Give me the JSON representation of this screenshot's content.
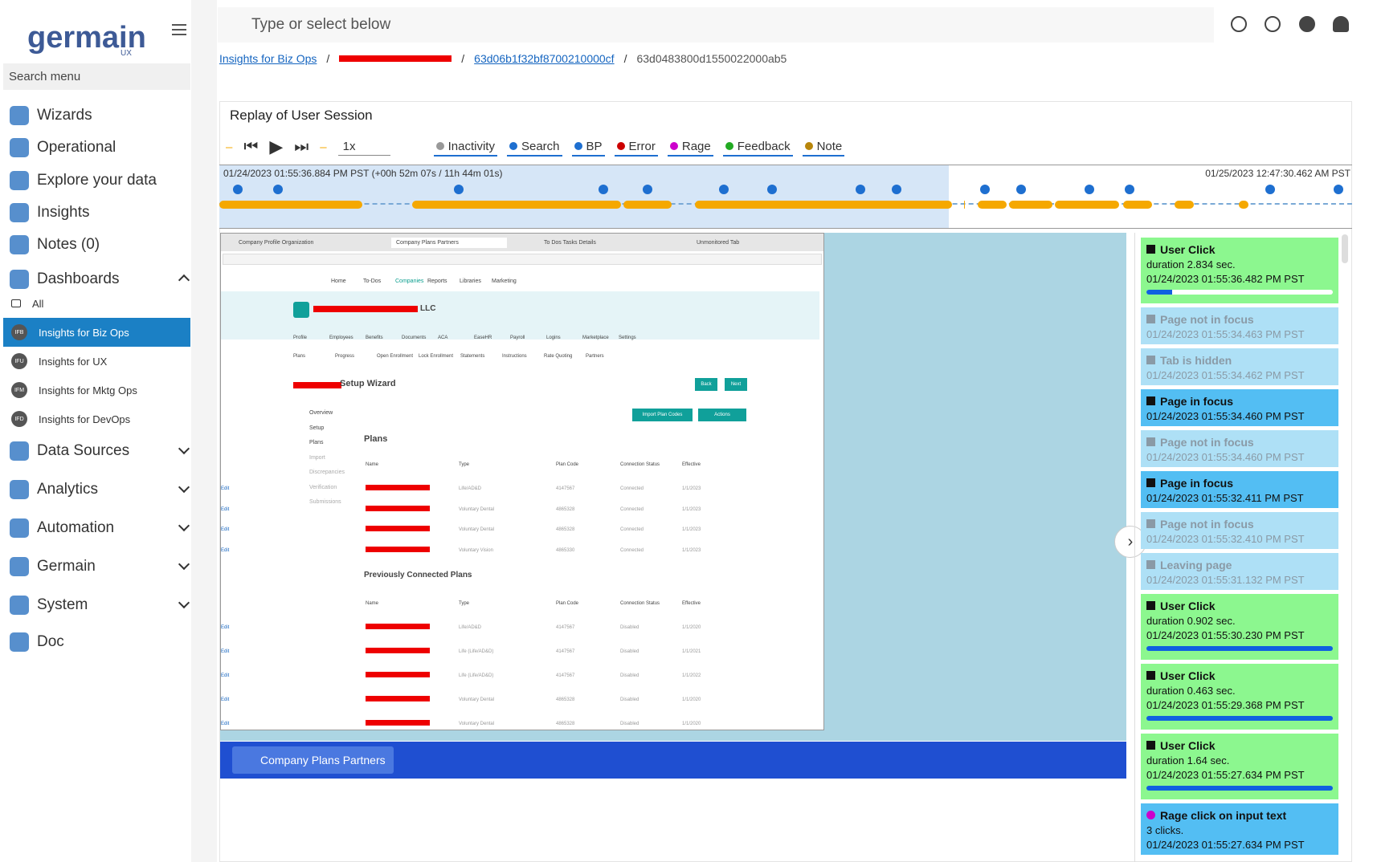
{
  "sidebar": {
    "brand": "germain",
    "brand_sub": "UX",
    "search_placeholder": "Search menu",
    "menu_top": [
      "Wizards",
      "Operational",
      "Explore your data",
      "Insights",
      "Notes (0)"
    ],
    "dashboards": {
      "label": "Dashboards",
      "children": [
        {
          "badge": "",
          "label": "All"
        },
        {
          "badge": "IFB",
          "label": "Insights for Biz Ops",
          "active": true
        },
        {
          "badge": "IFU",
          "label": "Insights for UX"
        },
        {
          "badge": "IFM",
          "label": "Insights for Mktg Ops"
        },
        {
          "badge": "IFD",
          "label": "Insights for DevOps"
        }
      ]
    },
    "menu_bottom": [
      "Data Sources",
      "Analytics",
      "Automation",
      "Germain",
      "System"
    ],
    "doc": "Doc"
  },
  "topbar": {
    "search_placeholder": "Type or select below"
  },
  "breadcrumb": [
    "Insights for Biz Ops",
    "63d06b1f32bf8700210000cf",
    "63d0483800d1550022000ab5"
  ],
  "panel": {
    "title": "Replay of User Session",
    "speed": "1x",
    "filters": [
      "Inactivity",
      "Search",
      "BP",
      "Error",
      "Rage",
      "Feedback",
      "Note"
    ],
    "timeline_start": "01/24/2023 01:55:36.884 PM PST (+00h 52m 07s / 11h 44m 01s)",
    "timeline_end": "01/25/2023 12:47:30.462 AM PST"
  },
  "replay": {
    "tabs": [
      "Company Profile Organization",
      "Company Plans Partners",
      "To Dos Tasks Details",
      "Unmonitored Tab"
    ],
    "nav": [
      "Home",
      "To-Dos",
      "Companies",
      "Reports",
      "Libraries",
      "Marketing"
    ],
    "company_suffix": "LLC",
    "subnav": [
      "Profile",
      "Employees",
      "Benefits",
      "Documents",
      "ACA",
      "EaseHR",
      "Payroll",
      "Logins",
      "Marketplace",
      "Settings"
    ],
    "subnav2": [
      "Plans",
      "Progress",
      "Open Enrollment",
      "Lock Enrollment",
      "Statements",
      "Instructions",
      "Rate Quoting",
      "Partners"
    ],
    "wizard_title": "Setup Wizard",
    "buttons": [
      "Back",
      "Next",
      "Import Plan Codes",
      "Actions"
    ],
    "steps": [
      "Overview",
      "Setup",
      "Plans",
      "Import",
      "Discrepancies",
      "Verification",
      "Submissions"
    ],
    "plans_title": "Plans",
    "columns": [
      "Name",
      "Type",
      "Plan Code",
      "Connection Status",
      "Effective"
    ],
    "plans": [
      [
        "Life/AD&D",
        "4147567",
        "Connected",
        "1/1/2023",
        "Edit"
      ],
      [
        "Voluntary Dental",
        "4865328",
        "Connected",
        "1/1/2023",
        "Edit"
      ],
      [
        "Voluntary Dental",
        "4865328",
        "Connected",
        "1/1/2023",
        "Edit"
      ],
      [
        "Voluntary Vision",
        "4865330",
        "Connected",
        "1/1/2023",
        "Edit"
      ]
    ],
    "prev_title": "Previously Connected Plans",
    "prev_plans": [
      [
        "Life/AD&D",
        "4147567",
        "Disabled",
        "1/1/2020",
        "Edit"
      ],
      [
        "Life (Life/AD&D)",
        "4147567",
        "Disabled",
        "1/1/2021",
        "Edit"
      ],
      [
        "Life (Life/AD&D)",
        "4147567",
        "Disabled",
        "1/1/2022",
        "Edit"
      ],
      [
        "Voluntary Dental",
        "4865328",
        "Disabled",
        "1/1/2020",
        "Edit"
      ],
      [
        "Voluntary Dental",
        "4865328",
        "Disabled",
        "1/1/2020",
        "Edit"
      ]
    ],
    "page_tab": "Company Plans Partners"
  },
  "events": [
    {
      "kind": "click",
      "title": "User Click",
      "lines": [
        "duration 2.834 sec.",
        "01/24/2023 01:55:36.482 PM PST"
      ]
    },
    {
      "kind": "hidden",
      "title": "Page not in focus",
      "lines": [
        "01/24/2023 01:55:34.463 PM PST"
      ]
    },
    {
      "kind": "hidden",
      "title": "Tab is hidden",
      "lines": [
        "01/24/2023 01:55:34.462 PM PST"
      ]
    },
    {
      "kind": "focus",
      "title": "Page in focus",
      "lines": [
        "01/24/2023 01:55:34.460 PM PST"
      ]
    },
    {
      "kind": "hidden",
      "title": "Page not in focus",
      "lines": [
        "01/24/2023 01:55:34.460 PM PST"
      ]
    },
    {
      "kind": "focus",
      "title": "Page in focus",
      "lines": [
        "01/24/2023 01:55:32.411 PM PST"
      ]
    },
    {
      "kind": "hidden",
      "title": "Page not in focus",
      "lines": [
        "01/24/2023 01:55:32.410 PM PST"
      ]
    },
    {
      "kind": "hidden",
      "title": "Leaving page",
      "lines": [
        "01/24/2023 01:55:31.132 PM PST"
      ]
    },
    {
      "kind": "click",
      "title": "User Click",
      "lines": [
        "duration 0.902 sec.",
        "01/24/2023 01:55:30.230 PM PST"
      ]
    },
    {
      "kind": "click",
      "title": "User Click",
      "lines": [
        "duration 0.463 sec.",
        "01/24/2023 01:55:29.368 PM PST"
      ]
    },
    {
      "kind": "click",
      "title": "User Click",
      "lines": [
        "duration 1.64 sec.",
        "01/24/2023 01:55:27.634 PM PST"
      ]
    },
    {
      "kind": "rage",
      "title": "Rage click on input text",
      "lines": [
        "3 clicks.",
        "01/24/2023 01:55:27.634 PM PST"
      ]
    }
  ]
}
